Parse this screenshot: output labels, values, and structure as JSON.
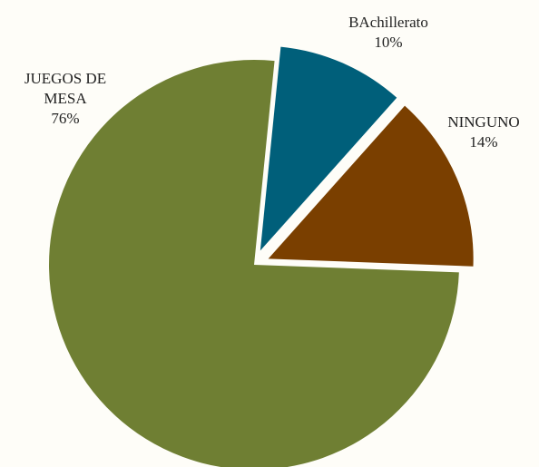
{
  "chart_data": {
    "type": "pie",
    "slices": [
      {
        "label": "BAchillerato",
        "value": 10,
        "percent_label": "10%",
        "color": "#005f7a",
        "exploded": true
      },
      {
        "label": "NINGUNO",
        "value": 14,
        "percent_label": "14%",
        "color": "#7a3f00",
        "exploded": true
      },
      {
        "label": "JUEGOS DE MESA",
        "value": 76,
        "percent_label": "76%",
        "color": "#6f7f33",
        "exploded": false
      }
    ],
    "title": "",
    "background": "#fefdf8"
  }
}
